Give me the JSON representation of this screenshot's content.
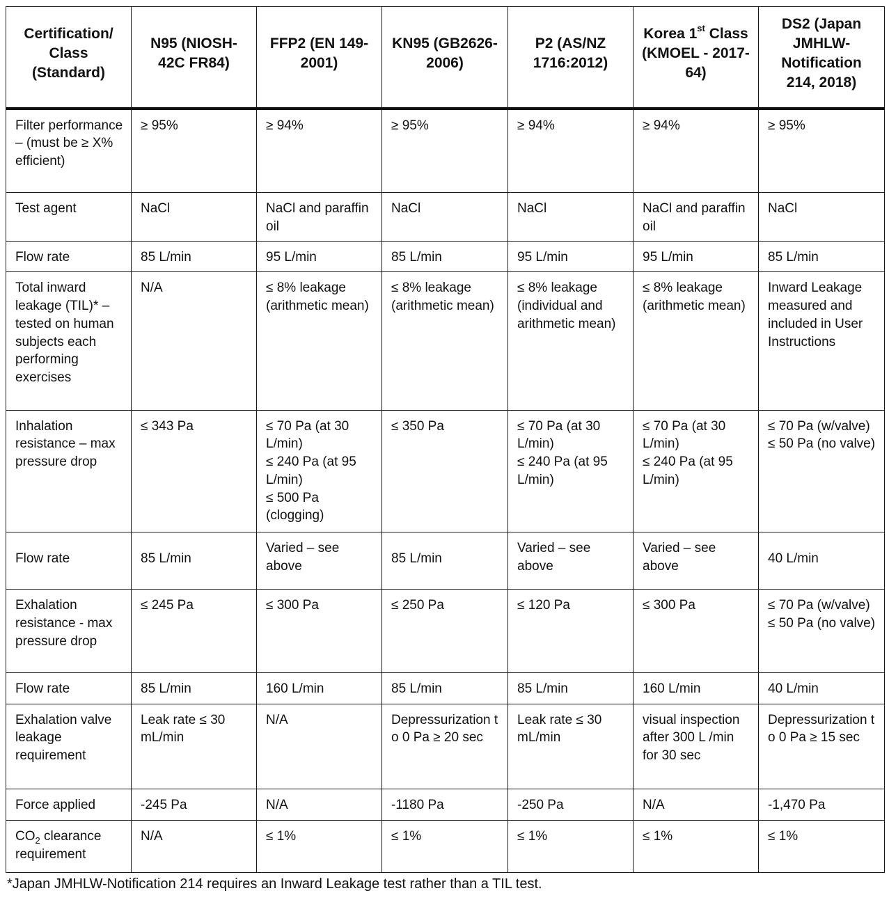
{
  "header": {
    "c0": "Certification/ Class (Standard)",
    "c1": "N95 (NIOSH-42C FR84)",
    "c2": "FFP2 (EN 149-2001)",
    "c3": "KN95 (GB2626-2006)",
    "c4": "P2 (AS/NZ 1716:2012)",
    "c5_pre": "Korea 1",
    "c5_sup": "st",
    "c5_post": "Class (KMOEL - 2017-64)",
    "c6": "DS2 (Japan JMHLW-Notification 214, 2018)"
  },
  "rows": [
    {
      "label": "Filter performance – (must be ≥ X% efficient)",
      "cells": [
        "≥ 95%",
        "≥ 94%",
        "≥ 95%",
        "≥ 94%",
        "≥ 94%",
        "≥ 95%"
      ]
    },
    {
      "label": "Test agent",
      "cells": [
        "NaCl",
        "NaCl and paraffin oil",
        "NaCl",
        "NaCl",
        "NaCl and paraffin oil",
        "NaCl"
      ]
    },
    {
      "label": "Flow rate",
      "cells": [
        "85 L/min",
        "95 L/min",
        "85 L/min",
        "95 L/min",
        "95 L/min",
        "85 L/min"
      ]
    },
    {
      "label": "Total inward leakage (TIL)* – tested on human subjects each performing exercises",
      "cells": [
        "N/A",
        "≤ 8% leakage (arithmetic mean)",
        "≤ 8% leakage (arithmetic mean)",
        "≤ 8% leakage (individual and arithmetic mean)",
        "≤ 8% leakage (arithmetic mean)",
        "Inward Leakage measured and included in User Instructions"
      ]
    },
    {
      "label": "Inhalation resistance – max pressure drop",
      "cells": [
        "≤ 343 Pa",
        "≤ 70 Pa (at 30 L/min)\n≤ 240 Pa (at 95 L/min)\n≤ 500 Pa (clogging)",
        "≤ 350 Pa",
        "≤ 70 Pa (at 30 L/min)\n≤ 240 Pa (at 95 L/min)",
        "≤ 70 Pa (at 30 L/min)\n≤ 240 Pa (at 95 L/min)",
        "≤ 70 Pa (w/valve)\n≤ 50 Pa (no valve)"
      ]
    },
    {
      "label": "Flow rate",
      "cells": [
        "85 L/min",
        "Varied – see above",
        "85 L/min",
        "Varied – see above",
        "Varied – see above",
        "40 L/min"
      ]
    },
    {
      "label": "Exhalation resistance - max pressure drop",
      "cells": [
        "≤ 245 Pa",
        "≤ 300 Pa",
        "≤ 250 Pa",
        "≤ 120 Pa",
        "≤ 300 Pa",
        "≤ 70 Pa (w/valve)\n≤ 50 Pa (no valve)"
      ]
    },
    {
      "label": "Flow rate",
      "cells": [
        "85 L/min",
        "160 L/min",
        "85 L/min",
        "85 L/min",
        "160 L/min",
        "40 L/min"
      ]
    },
    {
      "label": "Exhalation valve leakage requirement",
      "cells": [
        "Leak rate ≤ 30 mL/min",
        "N/A",
        "Depressurization to 0 Pa ≥ 20 sec",
        "Leak rate ≤ 30 mL/min",
        "visual inspection after 300 L /min for 30 sec",
        "Depressurization to 0 Pa ≥ 15 sec"
      ]
    },
    {
      "label": "Force applied",
      "cells": [
        "-245 Pa",
        "N/A",
        "-1180 Pa",
        "-250 Pa",
        "N/A",
        "-1,470 Pa"
      ]
    },
    {
      "label_pre": "CO",
      "label_sub": "2",
      "label_post": " clearance requirement",
      "cells": [
        "N/A",
        "≤ 1%",
        "≤ 1%",
        "≤ 1%",
        "≤ 1%",
        "≤ 1%"
      ]
    }
  ],
  "footnote": "*Japan JMHLW-Notification 214 requires an Inward Leakage test rather than a TIL test."
}
